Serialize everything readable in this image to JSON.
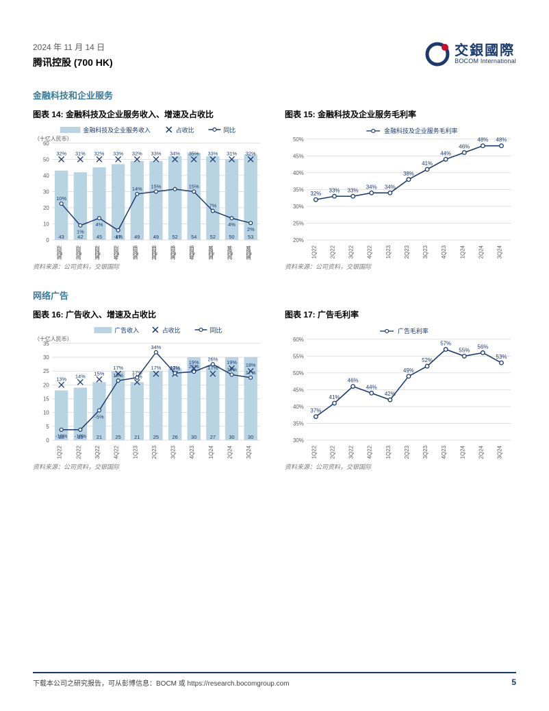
{
  "header": {
    "date": "2024 年 11 月 14 日",
    "company": "腾讯控股 (700 HK)",
    "logo_cn": "交銀國際",
    "logo_en": "BOCOM International"
  },
  "section1": {
    "title": "金融科技和企业服务"
  },
  "section2": {
    "title": "网络广告"
  },
  "chart14": {
    "title": "图表 14: 金融科技及企业服务收入、增速及占收比",
    "unit": "（十亿人民币）",
    "legend_bar": "金融科技及企业服务收入",
    "legend_x": "占收比",
    "legend_line": "同比",
    "categories": [
      "1Q22",
      "2Q22",
      "3Q22",
      "4Q22",
      "1Q23",
      "2Q23",
      "3Q23",
      "4Q23",
      "1Q24",
      "2Q24",
      "3Q24"
    ],
    "bars": [
      43,
      42,
      45,
      47,
      49,
      49,
      52,
      54,
      52,
      50,
      53
    ],
    "occupancy_labels": [
      "32%",
      "31%",
      "32%",
      "33%",
      "32%",
      "33%",
      "34%",
      "35%",
      "33%",
      "31%",
      "32%"
    ],
    "yoy_labels": [
      "10%",
      "1%",
      "4%",
      "-1%",
      "14%",
      "15%",
      "",
      "15%",
      "7%",
      "4%",
      "2%"
    ],
    "yoy_values": [
      10,
      1,
      4,
      -1,
      14,
      15,
      16,
      15,
      7,
      4,
      2
    ],
    "ylim": [
      0,
      60
    ],
    "ystep": 10,
    "bar_color": "#b8d4e3",
    "marker_color": "#1a3a6e",
    "line_color": "#1a3a6e",
    "source": "资料来源：公司资料，交银国际"
  },
  "chart15": {
    "title": "图表 15: 金融科技及企业服务毛利率",
    "legend": "金融科技及企业服务毛利率",
    "categories": [
      "1Q22",
      "2Q22",
      "3Q22",
      "4Q22",
      "1Q23",
      "2Q23",
      "3Q23",
      "4Q23",
      "1Q24",
      "2Q24",
      "3Q24"
    ],
    "values": [
      32,
      33,
      33,
      34,
      34,
      38,
      41,
      44,
      46,
      48,
      48
    ],
    "labels": [
      "32%",
      "33%",
      "33%",
      "34%",
      "34%",
      "38%",
      "41%",
      "44%",
      "46%",
      "48%",
      "48%"
    ],
    "ylim": [
      20,
      50
    ],
    "ystep": 5,
    "line_color": "#1a3a6e",
    "source": "资料来源：公司资料，交银国际"
  },
  "chart16": {
    "title": "图表 16: 广告收入、增速及占收比",
    "unit": "（十亿人民币）",
    "legend_bar": "广告收入",
    "legend_x": "占收比",
    "legend_line": "同比",
    "categories": [
      "1Q22",
      "2Q22",
      "3Q22",
      "4Q22",
      "1Q23",
      "2Q23",
      "3Q23",
      "4Q23",
      "1Q24",
      "2Q24",
      "3Q24"
    ],
    "bars": [
      18,
      19,
      21,
      25,
      21,
      25,
      26,
      30,
      27,
      30,
      30
    ],
    "occupancy_labels": [
      "13%",
      "14%",
      "15%",
      "17%",
      "14%",
      "17%",
      "17%",
      "19%",
      "17%",
      "19%",
      "18%"
    ],
    "occupancy_values": [
      13,
      14,
      15,
      17,
      14,
      17,
      17,
      19,
      17,
      19,
      18
    ],
    "yoy_labels": [
      "-18%",
      "-18%",
      "-5%",
      "15%",
      "17%",
      "34%",
      "20%",
      "21%",
      "26%",
      "19%",
      "17%"
    ],
    "yoy_values": [
      -18,
      -18,
      -5,
      15,
      17,
      34,
      20,
      21,
      26,
      19,
      17
    ],
    "ylim": [
      0,
      35
    ],
    "ystep": 5,
    "bar_color": "#b8d4e3",
    "marker_color": "#1a3a6e",
    "line_color": "#1a3a6e",
    "source": "资料来源：公司资料，交银国际"
  },
  "chart17": {
    "title": "图表 17: 广告毛利率",
    "legend": "广告毛利率",
    "categories": [
      "1Q22",
      "2Q22",
      "3Q22",
      "4Q22",
      "1Q23",
      "2Q23",
      "3Q23",
      "4Q23",
      "1Q24",
      "2Q24",
      "3Q24"
    ],
    "values": [
      37,
      41,
      46,
      44,
      42,
      49,
      52,
      57,
      55,
      56,
      53
    ],
    "labels": [
      "37%",
      "41%",
      "46%",
      "44%",
      "42%",
      "49%",
      "52%",
      "57%",
      "55%",
      "56%",
      "53%"
    ],
    "ylim": [
      30,
      60
    ],
    "ystep": 5,
    "line_color": "#1a3a6e",
    "source": "资料来源：公司资料，交银国际"
  },
  "footer": {
    "text": "下载本公司之研究报告，可从彭博信息：BOCM 或 https://research.bocomgroup.com",
    "page": "5"
  },
  "colors": {
    "grid": "#bfbfbf",
    "axis": "#595959",
    "brand": "#1a3a6e"
  }
}
